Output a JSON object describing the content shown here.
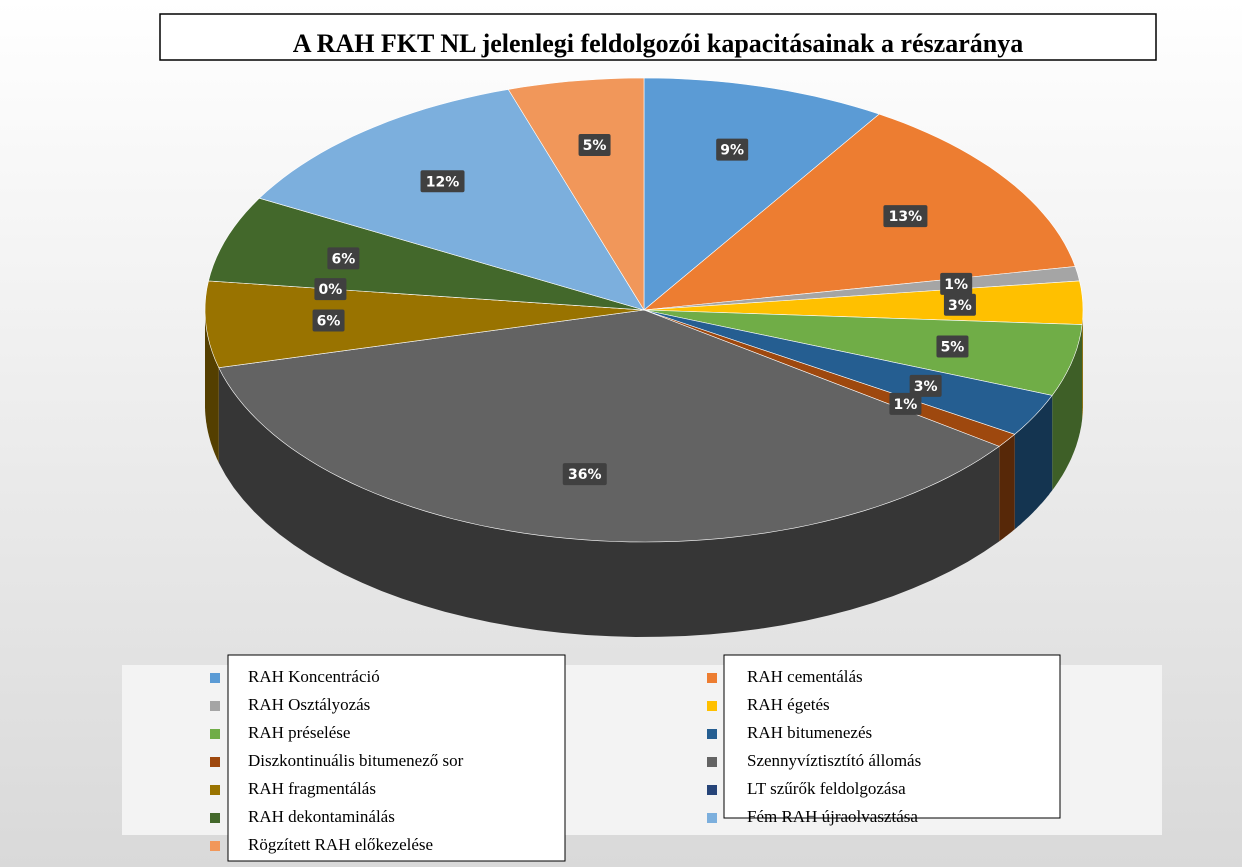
{
  "chart_data": {
    "type": "pie",
    "title": "A RAH FKT NL jelenlegi feldolgozói kapacitásainak a részaránya",
    "categories": [
      "RAH Koncentráció",
      "RAH cementálás",
      "RAH Osztályozás",
      "RAH égetés",
      "RAH préselése",
      "RAH bitumenezés",
      "Diszkontinuális bitumenező sor",
      "Szennyvíztisztító állomás",
      "RAH fragmentálás",
      "LT szűrők feldolgozása",
      "RAH dekontaminálás",
      "Fém RAH újraolvasztása",
      "Rögzített RAH előkezelése"
    ],
    "values": [
      9,
      13,
      1,
      3,
      5,
      3,
      1,
      36,
      6,
      0,
      6,
      12,
      5
    ],
    "value_labels": [
      "9%",
      "13%",
      "1%",
      "3%",
      "5%",
      "3%",
      "1%",
      "36%",
      "6%",
      "0%",
      "6%",
      "12%",
      "5%"
    ],
    "colors": [
      "#5b9bd5",
      "#ed7d31",
      "#a5a5a5",
      "#ffc000",
      "#70ad47",
      "#255e91",
      "#9e480e",
      "#636363",
      "#997300",
      "#264478",
      "#43682b",
      "#7cafdd",
      "#f1975a"
    ],
    "legend": "bottom"
  }
}
